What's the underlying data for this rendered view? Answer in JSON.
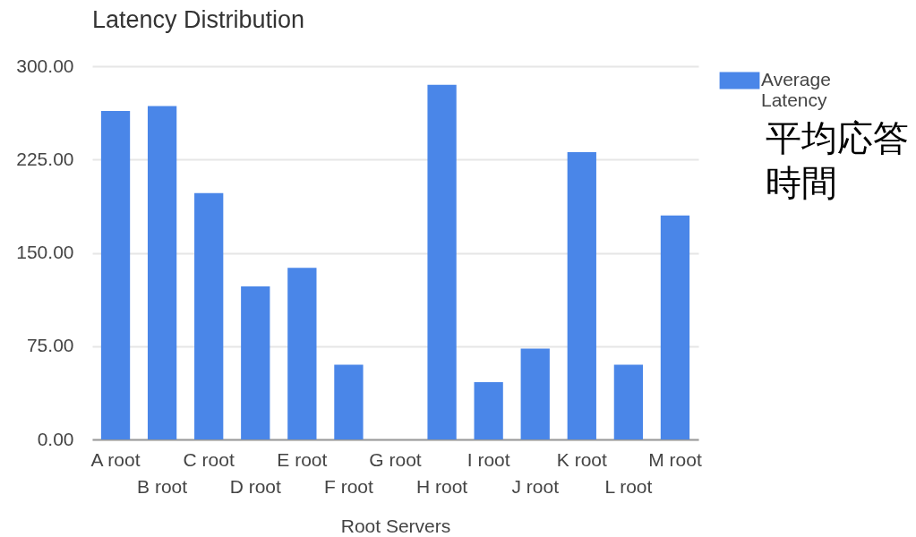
{
  "chart_data": {
    "type": "bar",
    "title": "Latency Distribution",
    "xlabel": "Root Servers",
    "categories": [
      "A root",
      "B root",
      "C root",
      "D root",
      "E root",
      "F root",
      "G root",
      "H root",
      "I root",
      "J root",
      "K root",
      "L root",
      "M root"
    ],
    "series": [
      {
        "name": "Average Latency",
        "color": "#4a86e8",
        "values": [
          264,
          268,
          198,
          123,
          138,
          60,
          null,
          285,
          46,
          73,
          231,
          60,
          180
        ]
      }
    ],
    "ylim": [
      0,
      300
    ],
    "yticks": [
      {
        "value": 0,
        "label": "0.00"
      },
      {
        "value": 75,
        "label": "75.00"
      },
      {
        "value": 150,
        "label": "150.00"
      },
      {
        "value": 225,
        "label": "225.00"
      },
      {
        "value": 300,
        "label": "300.00"
      }
    ],
    "grid": "y",
    "legend": "right",
    "annotations": [
      "平均応答時間"
    ]
  }
}
